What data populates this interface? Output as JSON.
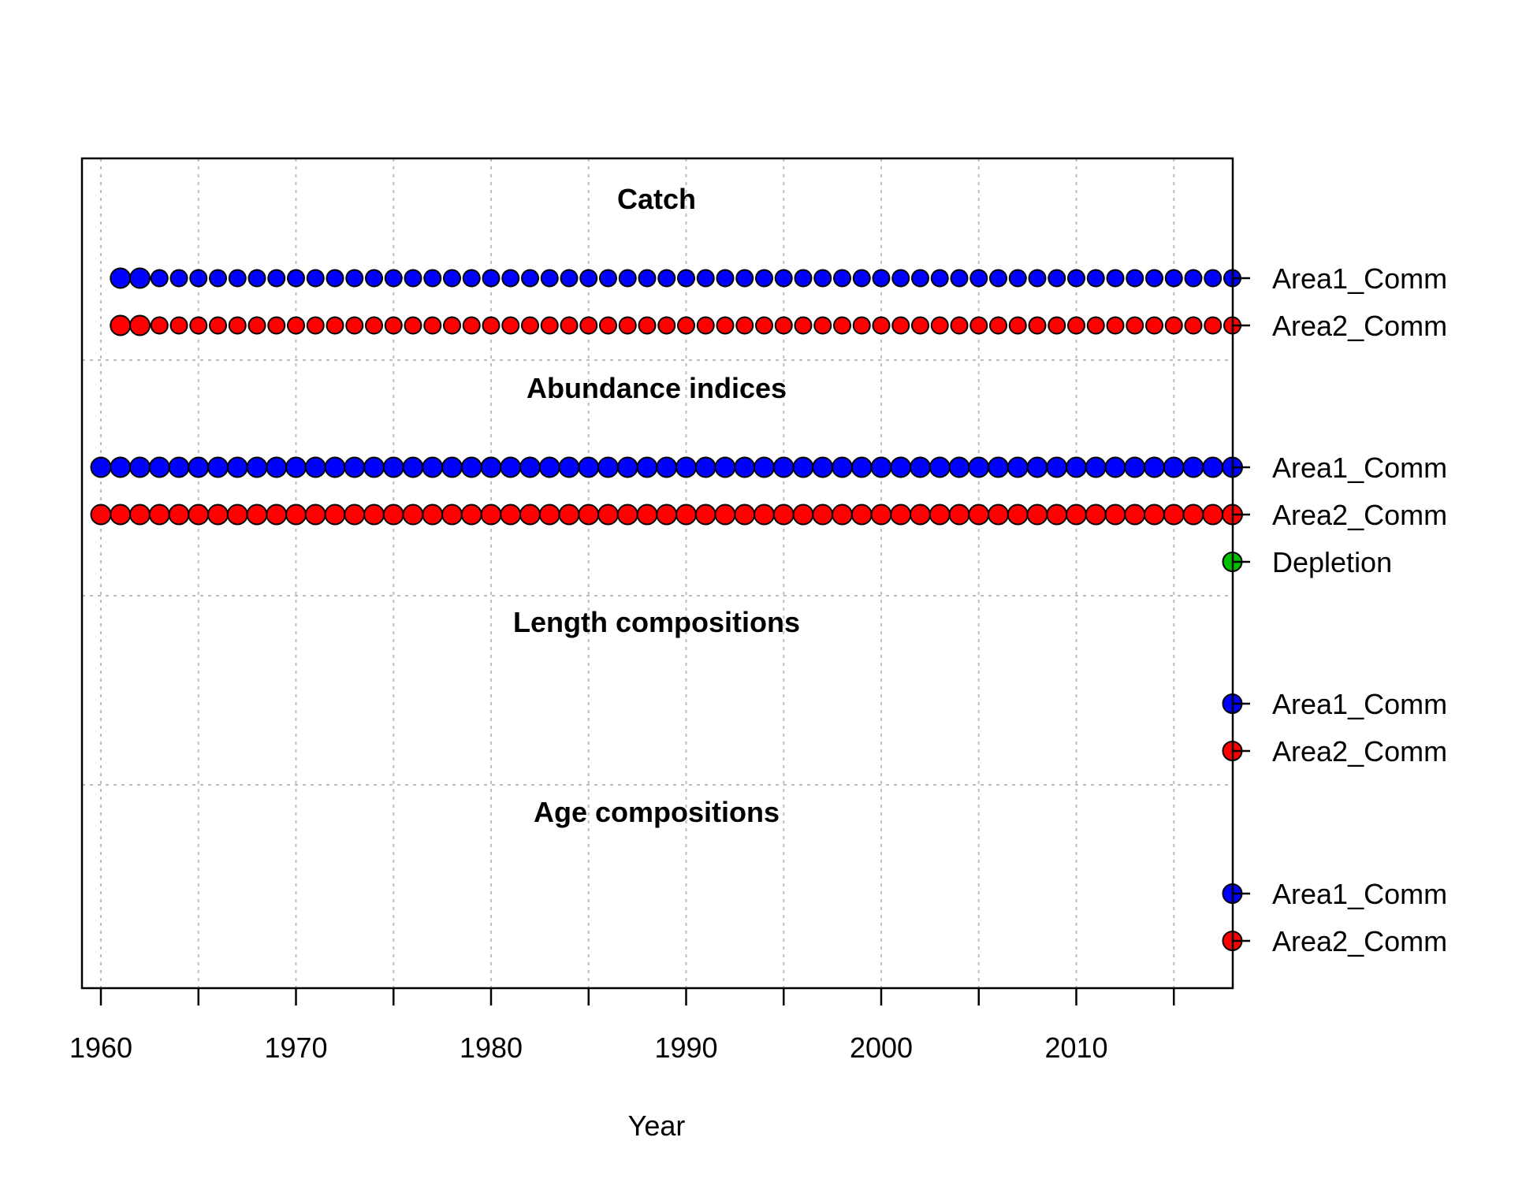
{
  "chart_data": {
    "type": "scatter",
    "xlabel": "Year",
    "xlim": [
      1959.5,
      2018.5
    ],
    "x_ticks": [
      "1960",
      "1970",
      "1980",
      "1990",
      "2000",
      "2010"
    ],
    "grid": true,
    "colors": {
      "Area1_Comm": "#0000ff",
      "Area2_Comm": "#ff0000",
      "Depletion": "#00c000"
    },
    "sections": [
      {
        "title": "Catch",
        "rows": [
          {
            "label": "Area1_Comm",
            "color": "#0000ff",
            "start": 1961,
            "end": 2018,
            "years": []
          },
          {
            "label": "Area2_Comm",
            "color": "#ff0000",
            "start": 1961,
            "end": 2018,
            "years": []
          }
        ]
      },
      {
        "title": "Abundance indices",
        "rows": [
          {
            "label": "Area1_Comm",
            "color": "#0000ff",
            "start": 1960,
            "end": 2018,
            "years": []
          },
          {
            "label": "Area2_Comm",
            "color": "#ff0000",
            "start": 1960,
            "end": 2018,
            "years": []
          },
          {
            "label": "Depletion",
            "color": "#00c000",
            "start": 2018,
            "end": 2018,
            "years": []
          }
        ]
      },
      {
        "title": "Length compositions",
        "rows": [
          {
            "label": "Area1_Comm",
            "color": "#0000ff",
            "start": 2018,
            "end": 2018,
            "years": []
          },
          {
            "label": "Area2_Comm",
            "color": "#ff0000",
            "start": 2018,
            "end": 2018,
            "years": []
          }
        ]
      },
      {
        "title": "Age compositions",
        "rows": [
          {
            "label": "Area1_Comm",
            "color": "#0000ff",
            "start": 2018,
            "end": 2018,
            "years": []
          },
          {
            "label": "Area2_Comm",
            "color": "#ff0000",
            "start": 2018,
            "end": 2018,
            "years": []
          }
        ]
      }
    ]
  }
}
